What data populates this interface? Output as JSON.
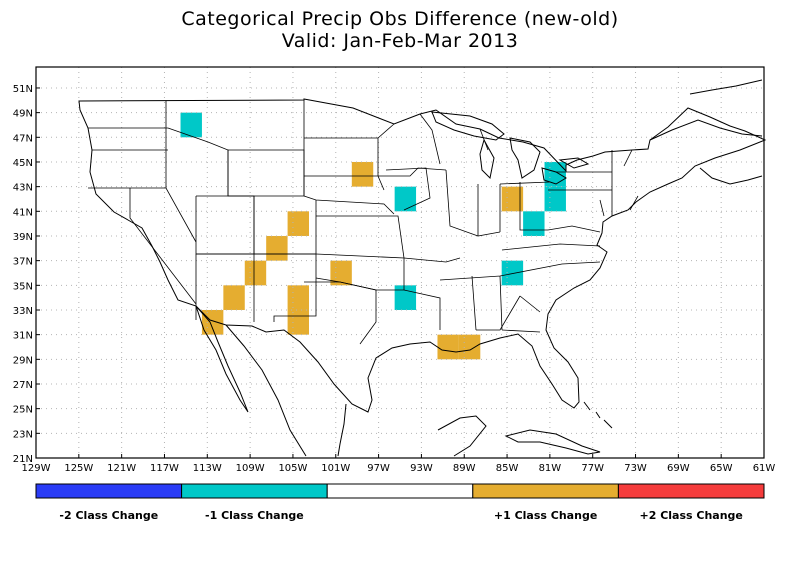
{
  "title": {
    "line1": "Categorical Precip Obs Difference (new-old)",
    "line2": "Valid: Jan-Feb-Mar 2013"
  },
  "axes": {
    "lon_labels": [
      "129W",
      "125W",
      "121W",
      "117W",
      "113W",
      "109W",
      "105W",
      "101W",
      "97W",
      "93W",
      "89W",
      "85W",
      "81W",
      "77W",
      "73W",
      "69W",
      "65W",
      "61W"
    ],
    "lon_values": [
      -129,
      -125,
      -121,
      -117,
      -113,
      -109,
      -105,
      -101,
      -97,
      -93,
      -89,
      -85,
      -81,
      -77,
      -73,
      -69,
      -65,
      -61
    ],
    "lat_labels": [
      "21N",
      "23N",
      "25N",
      "27N",
      "29N",
      "31N",
      "33N",
      "35N",
      "37N",
      "39N",
      "41N",
      "43N",
      "45N",
      "47N",
      "49N",
      "51N"
    ],
    "lat_values": [
      21,
      23,
      25,
      27,
      29,
      31,
      33,
      35,
      37,
      39,
      41,
      43,
      45,
      47,
      49,
      51
    ],
    "lon_range": [
      -129,
      -61
    ],
    "lat_range": [
      21,
      52.7
    ]
  },
  "colors": {
    "minus2": "#2a3cf6",
    "minus1": "#00c8c8",
    "zero": "#ffffff",
    "plus1": "#e5ad30",
    "plus2": "#f53c3c",
    "grid": "#b4b4b4"
  },
  "legend": {
    "labels": [
      "-2 Class Change",
      "-1 Class Change",
      "",
      "+1 Class Change",
      "+2 Class Change"
    ],
    "keys": [
      "minus2",
      "minus1",
      "zero",
      "plus1",
      "plus2"
    ]
  },
  "cells": [
    {
      "lon": -114.5,
      "lat": 48,
      "value": -1
    },
    {
      "lon": -94.5,
      "lat": 42,
      "value": -1
    },
    {
      "lon": -94.5,
      "lat": 34,
      "value": -1
    },
    {
      "lon": -82.5,
      "lat": 40,
      "value": -1
    },
    {
      "lon": -84.5,
      "lat": 36,
      "value": -1
    },
    {
      "lon": -80.5,
      "lat": 44,
      "value": -1
    },
    {
      "lon": -80.5,
      "lat": 42,
      "value": -1
    },
    {
      "lon": -98.5,
      "lat": 44,
      "value": 1
    },
    {
      "lon": -84.5,
      "lat": 42,
      "value": 1
    },
    {
      "lon": -104.5,
      "lat": 40,
      "value": 1
    },
    {
      "lon": -106.5,
      "lat": 38,
      "value": 1
    },
    {
      "lon": -108.5,
      "lat": 36,
      "value": 1
    },
    {
      "lon": -110.5,
      "lat": 34,
      "value": 1
    },
    {
      "lon": -112.5,
      "lat": 32,
      "value": 1
    },
    {
      "lon": -104.5,
      "lat": 34,
      "value": 1
    },
    {
      "lon": -104.5,
      "lat": 32,
      "value": 1
    },
    {
      "lon": -100.5,
      "lat": 36,
      "value": 1
    },
    {
      "lon": -90.5,
      "lat": 30,
      "value": 1
    },
    {
      "lon": -88.5,
      "lat": 30,
      "value": 1
    }
  ]
}
